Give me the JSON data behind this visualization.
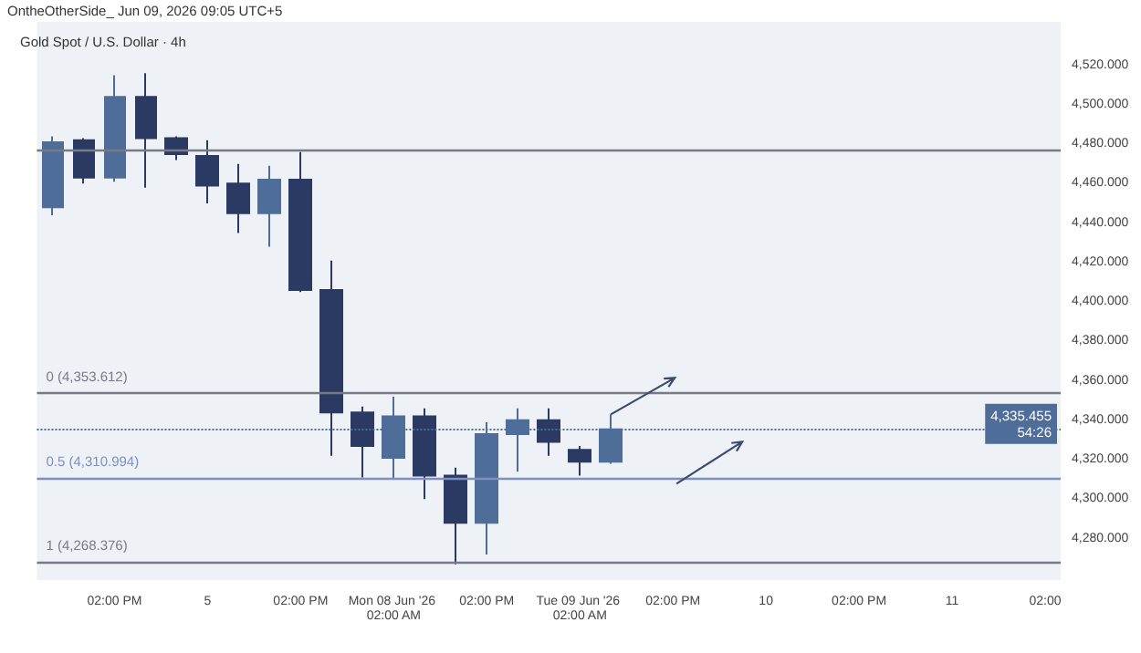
{
  "chart_data": {
    "type": "candlestick",
    "title": "Gold Spot / U.S. Dollar · 4h",
    "annotations": [
      "OntheOtherSide_ Jun 09, 2026 09:05 UTC+5"
    ],
    "categories": [
      null,
      null,
      "02:00 PM",
      null,
      null,
      "5",
      null,
      null,
      "02:00 PM",
      null,
      null,
      "Mon 08 Jun '26 02:00 AM",
      null,
      null,
      "02:00 PM",
      null,
      null,
      "Tue 09 Jun '26 02:00 AM",
      null,
      null,
      "02:00 PM",
      null,
      null,
      "10",
      null,
      null,
      "02:00 PM",
      null,
      null,
      "11",
      null,
      null,
      "02:00"
    ],
    "series": [
      {
        "ohlc": [
          [
            4448,
            4484,
            4444,
            4481
          ],
          [
            4482,
            4483,
            4460,
            4463
          ],
          [
            4463,
            4515,
            4461,
            4504
          ],
          [
            4504,
            4516,
            4458,
            4483
          ],
          [
            4483,
            4484,
            4472,
            4475
          ],
          [
            4474,
            4482,
            4450,
            4459
          ],
          [
            4460,
            4470,
            4435,
            4445
          ],
          [
            4445,
            4469,
            4428,
            4462
          ],
          [
            4462,
            4476,
            4405,
            4406
          ],
          [
            4406,
            4421,
            4322,
            4344
          ],
          [
            4344,
            4347,
            4311,
            4327
          ],
          [
            4321,
            4352,
            4310,
            4342
          ],
          [
            4342,
            4346,
            4300,
            4312
          ],
          [
            4312,
            4316,
            4267,
            4288
          ],
          [
            4288,
            4339,
            4272,
            4333
          ],
          [
            4333,
            4346,
            4314,
            4340
          ],
          [
            4340,
            4346,
            4322,
            4329
          ],
          [
            4325,
            4327,
            4312,
            4319
          ],
          [
            4319,
            4343,
            4318,
            4335.455
          ],
          null,
          null,
          null,
          null,
          null,
          null,
          null,
          null,
          null,
          null,
          null,
          null,
          null,
          null
        ],
        "colors": [
          "#4f6d99",
          "#2b3a63",
          "#4f6d99",
          "#2b3a63",
          "#2b3a63",
          "#2b3a63",
          "#2b3a63",
          "#4f6d99",
          "#2b3a63",
          "#2b3a63",
          "#2b3a63",
          "#4f6d99",
          "#2b3a63",
          "#2b3a63",
          "#4f6d99",
          "#4f6d99",
          "#2b3a63",
          "#2b3a63",
          "#4f6d99",
          null,
          null,
          null,
          null,
          null,
          null,
          null,
          null,
          null,
          null,
          null,
          null,
          null,
          null
        ]
      }
    ],
    "ylim": [
      4259,
      4542
    ],
    "yticks": [
      {
        "value": 4280,
        "label": "4,280.000"
      },
      {
        "value": 4300,
        "label": "4,300.000"
      },
      {
        "value": 4320,
        "label": "4,320.000"
      },
      {
        "value": 4340,
        "label": "4,340.000"
      },
      {
        "value": 4360,
        "label": "4,360.000"
      },
      {
        "value": 4380,
        "label": "4,380.000"
      },
      {
        "value": 4400,
        "label": "4,400.000"
      },
      {
        "value": 4420,
        "label": "4,420.000"
      },
      {
        "value": 4440,
        "label": "4,440.000"
      },
      {
        "value": 4460,
        "label": "4,460.000"
      },
      {
        "value": 4480,
        "label": "4,480.000"
      },
      {
        "value": 4500,
        "label": "4,500.000"
      },
      {
        "value": 4520,
        "label": "4,520.000"
      }
    ],
    "ref_lines": [
      {
        "axis": "y",
        "value": 4353.612,
        "label": "0 (4,353.612)",
        "color": "#787b86",
        "line_style": "solid"
      },
      {
        "axis": "y",
        "value": 4310.994,
        "label": "0.5 (4,310.994)",
        "color": "#7f8fc0",
        "line_style": "solid"
      },
      {
        "axis": "y",
        "value": 4268.376,
        "label": "1 (4,268.376)",
        "color": "#787b86",
        "line_style": "solid"
      },
      {
        "axis": "y",
        "value": 4477,
        "label": null,
        "color": "#787b86",
        "line_style": "solid"
      },
      {
        "axis": "y",
        "value": 4335.455,
        "label": "4,335.455\n54:26",
        "color": "#4f6d99",
        "line_style": "dotted"
      }
    ],
    "grid": false
  }
}
